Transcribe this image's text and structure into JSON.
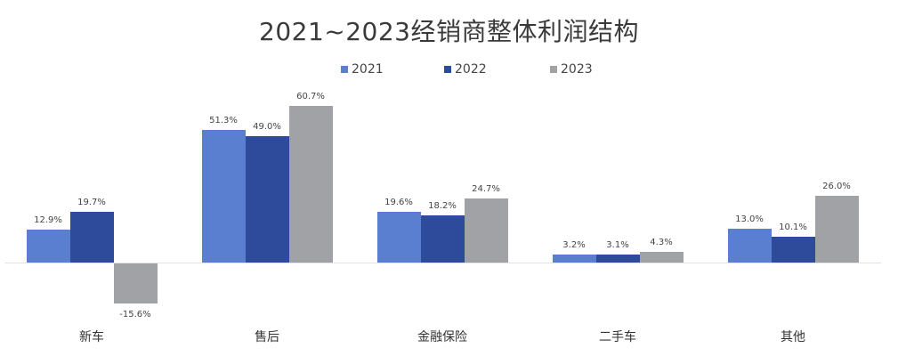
{
  "title": "2021~2023经销商整体利润结构",
  "legend": [
    {
      "label": "2021",
      "color": "#5b7fd0"
    },
    {
      "label": "2022",
      "color": "#2e4a9a"
    },
    {
      "label": "2023",
      "color": "#a0a2a6"
    }
  ],
  "chart_data": {
    "type": "bar",
    "title": "2021~2023经销商整体利润结构",
    "xlabel": "",
    "ylabel": "",
    "categories": [
      "新车",
      "售后",
      "金融保险",
      "二手车",
      "其他"
    ],
    "series": [
      {
        "name": "2021",
        "color": "#5b7fd0",
        "values": [
          12.9,
          51.3,
          19.6,
          3.2,
          13.0
        ],
        "labels": [
          "12.9%",
          "51.3%",
          "19.6%",
          "3.2%",
          "13.0%"
        ]
      },
      {
        "name": "2022",
        "color": "#2e4a9a",
        "values": [
          19.7,
          49.0,
          18.2,
          3.1,
          10.1
        ],
        "labels": [
          "19.7%",
          "49.0%",
          "18.2%",
          "3.1%",
          "10.1%"
        ]
      },
      {
        "name": "2023",
        "color": "#a0a2a6",
        "values": [
          -15.6,
          60.7,
          24.7,
          4.3,
          26.0
        ],
        "labels": [
          "-15.6%",
          "60.7%",
          "24.7%",
          "4.3%",
          "26.0%"
        ]
      }
    ],
    "unit": "%",
    "grid": false,
    "legend_position": "top",
    "ylim": [
      -20,
      65
    ]
  }
}
